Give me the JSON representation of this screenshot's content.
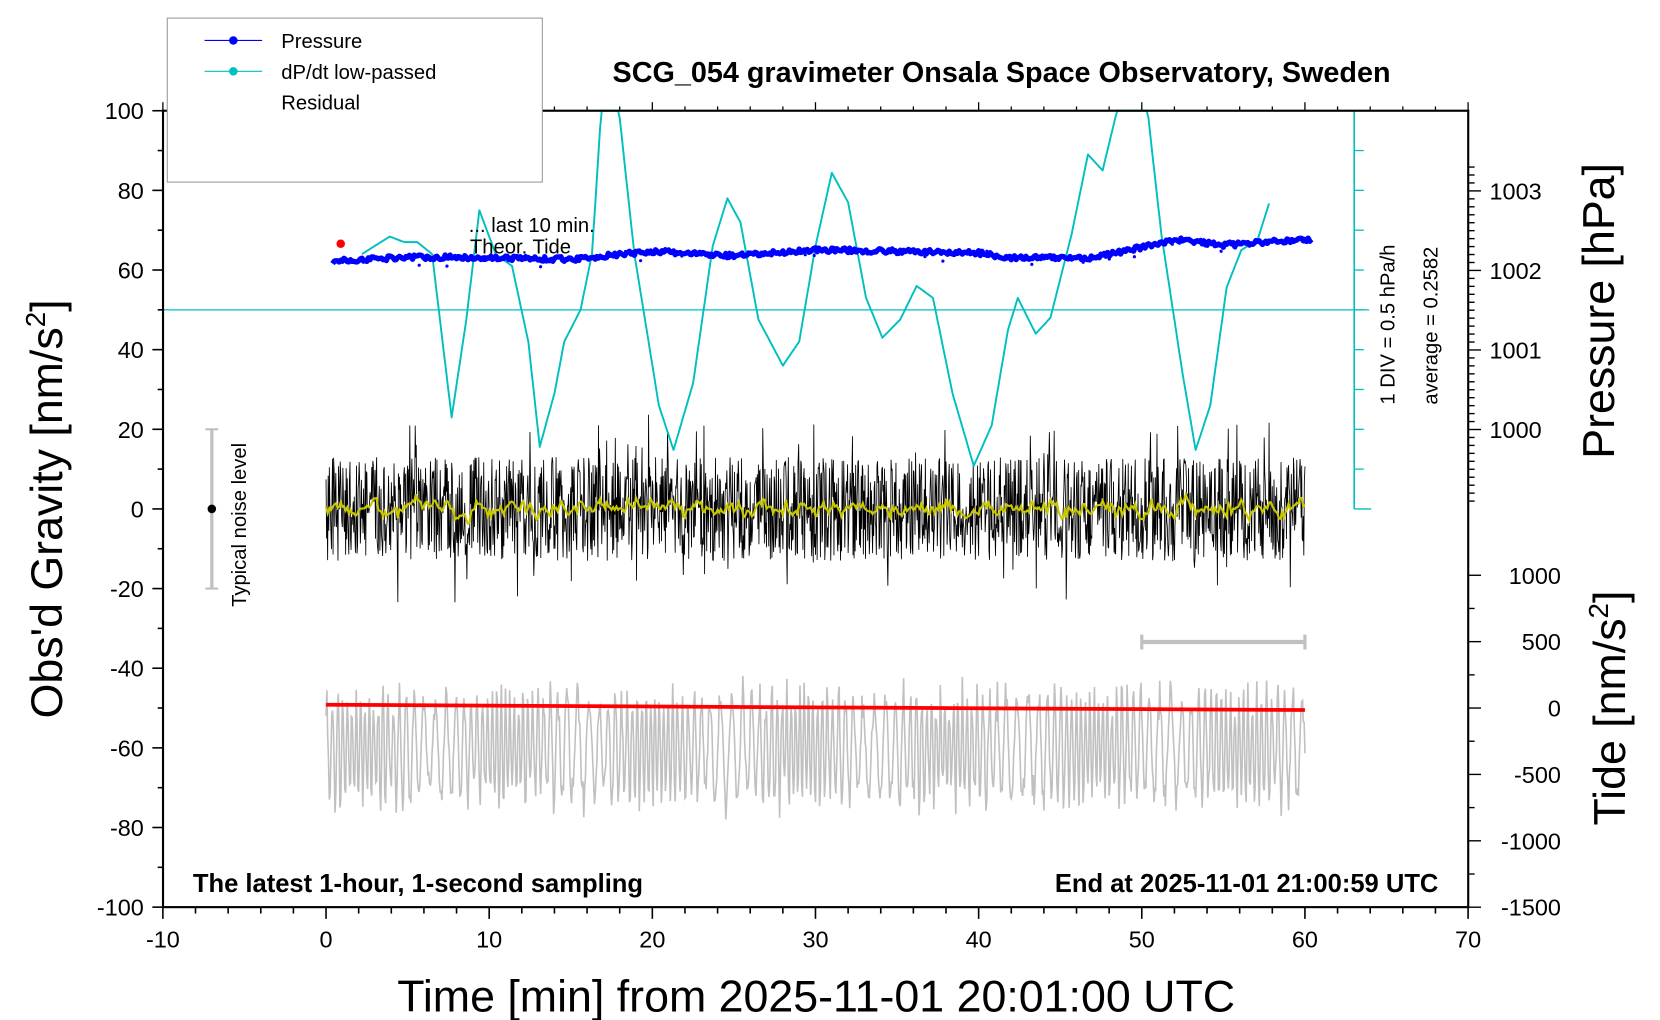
{
  "chart_data": {
    "type": "line",
    "title": "SCG_054 gravimeter Onsala Space Observatory, Sweden",
    "xlabel": "Time [min] from 2025-11-01 20:01:00 UTC",
    "ylabel": "Obs'd Gravity [nm/s",
    "ylabel_sup": "2",
    "ylabel_close": "]",
    "pressure_label": "Pressure [hPa]",
    "tide_label": "Tide [nm/s",
    "tide_label_sup": "2",
    "tide_label_close": "]",
    "xlim": [
      -10,
      70
    ],
    "ylim": [
      -100,
      100
    ],
    "xticks": [
      -10,
      0,
      10,
      20,
      30,
      40,
      50,
      60,
      70
    ],
    "yticks": [
      100,
      80,
      60,
      40,
      20,
      0,
      -20,
      -40,
      -60,
      -80,
      -100
    ],
    "pressure_ticks": [
      1003,
      1002,
      1001,
      1000
    ],
    "tide_ticks": [
      1000,
      500,
      0,
      -500,
      -1000,
      -1500
    ],
    "grid": false,
    "legend": {
      "placement": "top-left",
      "entries": [
        "Pressure",
        "dP/dt low-passed",
        "Residual"
      ]
    },
    "annotations": {
      "last10": "... last 10 min.",
      "theor_tide": "Theor. Tide",
      "div": "1 DIV = 0.5 hPa/h",
      "average": "average = 0.2582",
      "noise": "Typical noise level",
      "bottom_left": "The latest 1-hour, 1-second sampling",
      "bottom_right": "End at 2025-11-01 21:00:59 UTC"
    },
    "noise_bar": [
      -20,
      20
    ],
    "colors": {
      "pressure": "#0000ff",
      "dpdt": "#00bfbf",
      "residual": "#000000",
      "residual_smoothed": "#c8c800",
      "tide": "#ff0000",
      "gray": "#c0c0c0",
      "noise_bar": "#c0c0c0"
    },
    "series": {
      "pressure_hPa": {
        "x": [
          0,
          5,
          10,
          15,
          20,
          25,
          30,
          35,
          40,
          42,
          47,
          50,
          52,
          55,
          60
        ],
        "y": [
          1002.11,
          1002.17,
          1002.16,
          1002.14,
          1002.24,
          1002.18,
          1002.26,
          1002.24,
          1002.22,
          1002.16,
          1002.16,
          1002.29,
          1002.39,
          1002.32,
          1002.39
        ]
      },
      "dpdt_hPa_per_h": {
        "x": [
          2.2,
          3.9,
          4.8,
          5.6,
          6.5,
          7.7,
          8.6,
          9.4,
          10.4,
          11.4,
          12.4,
          13.1,
          14,
          14.6,
          15.6,
          16.3,
          16.9,
          17.9,
          18.9,
          20.4,
          21.3,
          22.5,
          23.7,
          24.6,
          25.4,
          26.5,
          28,
          29,
          30,
          31,
          32,
          33.1,
          34.1,
          35.2,
          36.2,
          37.2,
          38.4,
          39.7,
          40.8,
          41.8,
          42.4,
          43.5,
          44.4,
          45.7,
          46.7,
          47.6,
          48.6,
          50.3,
          51.2,
          52.5,
          53.3,
          54.2,
          55.2,
          56.1,
          57.1,
          57.9
        ],
        "y": [
          0.7,
          0.92,
          0.85,
          0.85,
          0.7,
          -1.35,
          -0.12,
          1.25,
          0.7,
          0.55,
          -0.4,
          -1.72,
          -1.05,
          -0.4,
          0.0,
          0.7,
          2.6,
          2.6,
          0.7,
          -1.2,
          -1.76,
          -0.92,
          0.8,
          1.4,
          1.1,
          -0.12,
          -0.7,
          -0.4,
          0.8,
          1.72,
          1.35,
          0.15,
          -0.35,
          -0.12,
          0.3,
          0.15,
          -1.05,
          -1.96,
          -1.45,
          -0.25,
          0.15,
          -0.3,
          -0.1,
          0.95,
          1.95,
          1.75,
          2.6,
          2.6,
          0.95,
          -0.8,
          -1.76,
          -1.2,
          0.28,
          0.75,
          0.88,
          1.4
        ]
      },
      "residual_nm_s2": {
        "x_range": [
          0,
          60
        ],
        "typical_range": [
          -23,
          27
        ]
      },
      "theor_tide_nm_s2": {
        "x": [
          0,
          60
        ],
        "y": [
          25,
          -15
        ]
      },
      "red_marker": {
        "x": 0.9,
        "y": 66.6
      },
      "gray_scale_bar_min": [
        50,
        60
      ],
      "gray_series_nm_s2": {
        "x_range": [
          0,
          60
        ],
        "typical_range": [
          -86,
          -36
        ]
      }
    }
  }
}
